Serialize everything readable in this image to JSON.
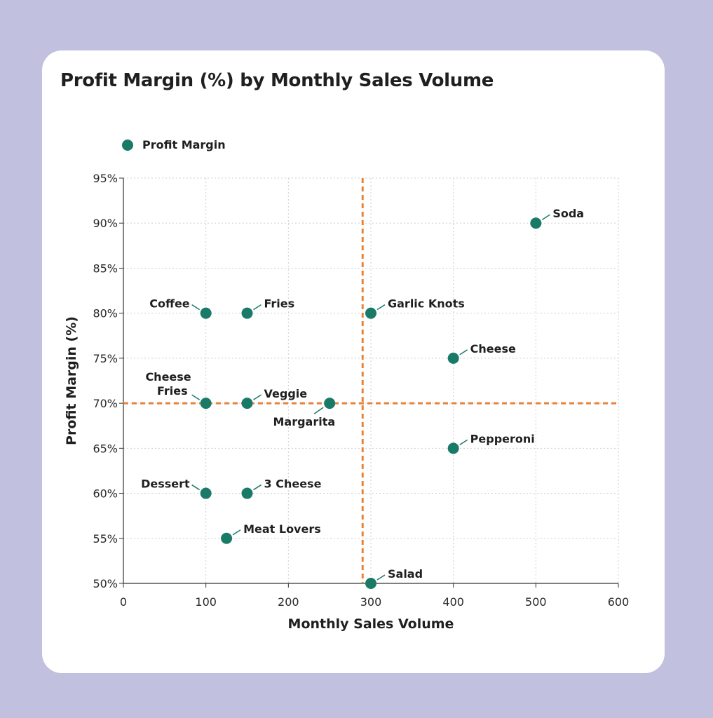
{
  "chart_data": {
    "type": "scatter",
    "title": "Profit Margin (%) by Monthly Sales Volume",
    "xlabel": "Monthly Sales Volume",
    "ylabel": "Profit Margin (%)",
    "xlim": [
      0,
      600
    ],
    "ylim": [
      50,
      95
    ],
    "x_ticks": [
      0,
      100,
      200,
      300,
      400,
      500,
      600
    ],
    "x_tick_labels": [
      "0",
      "100",
      "200",
      "300",
      "400",
      "500",
      "600"
    ],
    "y_ticks": [
      50,
      55,
      60,
      65,
      70,
      75,
      80,
      85,
      90,
      95
    ],
    "y_tick_labels": [
      "50%",
      "55%",
      "60%",
      "65%",
      "70%",
      "75%",
      "80%",
      "85%",
      "90%",
      "95%"
    ],
    "grid": true,
    "legend_position": "top-left",
    "colors": {
      "point": "#1a7a68",
      "reference_line": "#e8843a"
    },
    "reference_lines": {
      "x": 290,
      "y": 70
    },
    "series": [
      {
        "name": "Profit Margin",
        "points": [
          {
            "label": "Coffee",
            "x": 100,
            "y": 80,
            "pos": "ul"
          },
          {
            "label": "Fries",
            "x": 150,
            "y": 80,
            "pos": "ur"
          },
          {
            "label": "Garlic Knots",
            "x": 300,
            "y": 80,
            "pos": "ur"
          },
          {
            "label": "Soda",
            "x": 500,
            "y": 90,
            "pos": "ur"
          },
          {
            "label": "Cheese",
            "x": 400,
            "y": 75,
            "pos": "ur"
          },
          {
            "label": "Cheese Fries",
            "x": 100,
            "y": 70,
            "pos": "ul2"
          },
          {
            "label": "Veggie",
            "x": 150,
            "y": 70,
            "pos": "ur"
          },
          {
            "label": "Margarita",
            "x": 250,
            "y": 70,
            "pos": "bl"
          },
          {
            "label": "Pepperoni",
            "x": 400,
            "y": 65,
            "pos": "ur"
          },
          {
            "label": "Dessert",
            "x": 100,
            "y": 60,
            "pos": "ul"
          },
          {
            "label": "3 Cheese",
            "x": 150,
            "y": 60,
            "pos": "ur"
          },
          {
            "label": "Meat Lovers",
            "x": 125,
            "y": 55,
            "pos": "ur"
          },
          {
            "label": "Salad",
            "x": 300,
            "y": 50,
            "pos": "ur"
          }
        ]
      }
    ]
  }
}
